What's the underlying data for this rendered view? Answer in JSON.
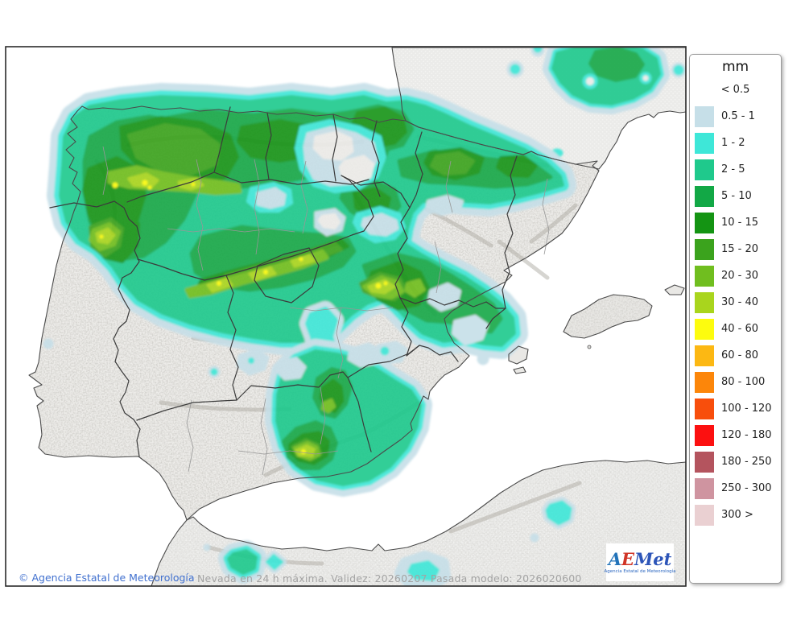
{
  "footer": {
    "copyright": "© Agencia Estatal de Meteorología",
    "caption": "Nevada en 24 h máxima. Validez: 20260207 Pasada modelo: 2026020600"
  },
  "logo": {
    "letter_a": "A",
    "letter_e": "E",
    "letter_met": "Met",
    "subtitle": "Agencia Estatal de Meteorología"
  },
  "legend": {
    "title": "mm",
    "first_label": "< 0.5",
    "entries": [
      {
        "label": "0.5 - 1",
        "color": "#c6dfe8"
      },
      {
        "label": "1 - 2",
        "color": "#3ee7d8"
      },
      {
        "label": "2 - 5",
        "color": "#1fc98c"
      },
      {
        "label": "5 - 10",
        "color": "#12a846"
      },
      {
        "label": "10 - 15",
        "color": "#149413"
      },
      {
        "label": "15 - 20",
        "color": "#3ba31d"
      },
      {
        "label": "20 - 30",
        "color": "#70be1f"
      },
      {
        "label": "30 - 40",
        "color": "#a9d51d"
      },
      {
        "label": "40 - 60",
        "color": "#fdfc0e"
      },
      {
        "label": "60 - 80",
        "color": "#fcb813"
      },
      {
        "label": "80 - 100",
        "color": "#fc860a"
      },
      {
        "label": "100 - 120",
        "color": "#f84e0c"
      },
      {
        "label": "120 - 180",
        "color": "#fc1010"
      },
      {
        "label": "180 - 250",
        "color": "#b4545e"
      },
      {
        "label": "250 - 300",
        "color": "#cf94a0"
      },
      {
        "label": "300 >",
        "color": "#ead0d2"
      }
    ]
  }
}
